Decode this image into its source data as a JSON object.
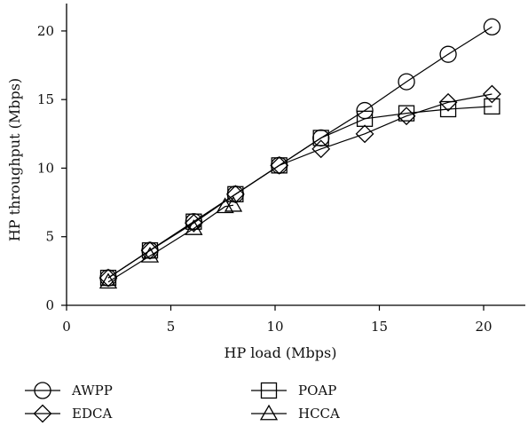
{
  "chart_data": {
    "type": "line",
    "title": "",
    "xlabel": "HP load (Mbps)",
    "ylabel": "HP throughput (Mbps)",
    "xlim": [
      0,
      22
    ],
    "ylim": [
      0,
      22
    ],
    "xticks": [
      0,
      5,
      10,
      15,
      20
    ],
    "yticks": [
      0,
      5,
      10,
      15,
      20
    ],
    "grid": false,
    "legend_position": "bottom",
    "series": [
      {
        "name": "AWPP",
        "marker": "circle",
        "color": "#000000",
        "x": [
          2.0,
          4.0,
          6.1,
          8.1,
          10.2,
          12.2,
          14.3,
          16.3,
          18.3,
          20.4
        ],
        "y": [
          2.0,
          4.0,
          6.1,
          8.1,
          10.2,
          12.2,
          14.2,
          16.3,
          18.3,
          20.3
        ]
      },
      {
        "name": "POAP",
        "marker": "square",
        "color": "#000000",
        "x": [
          2.0,
          4.0,
          6.1,
          8.1,
          10.2,
          12.2,
          14.3,
          16.3,
          18.3,
          20.4
        ],
        "y": [
          2.0,
          4.0,
          6.1,
          8.1,
          10.2,
          12.2,
          13.6,
          14.0,
          14.3,
          14.5
        ]
      },
      {
        "name": "EDCA",
        "marker": "diamond",
        "color": "#000000",
        "x": [
          2.0,
          4.0,
          6.1,
          8.1,
          10.2,
          12.2,
          14.3,
          16.3,
          18.3,
          20.4
        ],
        "y": [
          2.0,
          4.0,
          6.0,
          8.1,
          10.2,
          11.4,
          12.5,
          13.8,
          14.8,
          15.4
        ]
      },
      {
        "name": "HCCA",
        "marker": "triangle",
        "color": "#000000",
        "x": [
          2.0,
          4.0,
          6.1,
          7.6,
          8.0
        ],
        "y": [
          1.7,
          3.6,
          5.6,
          7.2,
          7.3
        ]
      }
    ]
  }
}
